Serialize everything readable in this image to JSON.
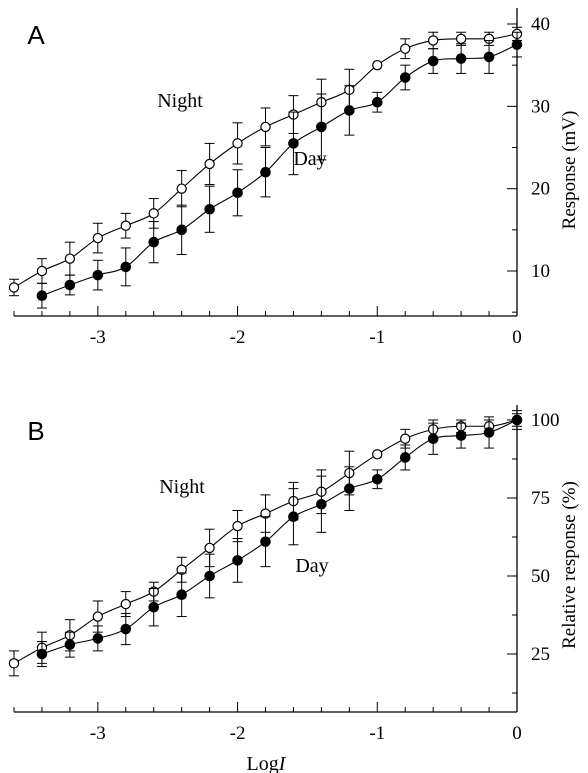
{
  "chart_data": [
    {
      "panel_label": "A",
      "type": "scatter",
      "ylabel": "Response (mV)",
      "yticks": [
        10,
        20,
        30,
        40
      ],
      "xticks": [
        -3,
        -2,
        -1,
        0
      ],
      "xlim": [
        -3.6,
        0
      ],
      "ylim": [
        3,
        43
      ],
      "annotations": [
        "Night",
        "Day"
      ],
      "series": [
        {
          "marker": "open",
          "x": [
            -3.6,
            -3.4,
            -3.2,
            -3.0,
            -2.8,
            -2.6,
            -2.4,
            -2.2,
            -2.0,
            -1.8,
            -1.6,
            -1.4,
            -1.2,
            -1.0,
            -0.8,
            -0.6,
            -0.4,
            -0.2,
            0.0
          ],
          "y": [
            8.0,
            10.0,
            11.5,
            14.0,
            15.5,
            17.0,
            20.0,
            23.0,
            25.5,
            27.5,
            29.0,
            30.5,
            32.0,
            35.0,
            37.0,
            38.0,
            38.2,
            38.2,
            38.8
          ],
          "err": [
            1.0,
            1.5,
            2.0,
            1.8,
            1.5,
            1.8,
            2.2,
            2.5,
            2.5,
            2.3,
            2.3,
            2.8,
            2.5,
            0,
            1.2,
            1.0,
            0.8,
            0.8,
            0.8
          ]
        },
        {
          "marker": "filled",
          "x": [
            -3.4,
            -3.2,
            -3.0,
            -2.8,
            -2.6,
            -2.4,
            -2.2,
            -2.0,
            -1.8,
            -1.6,
            -1.4,
            -1.2,
            -1.0,
            -0.8,
            -0.6,
            -0.4,
            -0.2,
            0.0
          ],
          "y": [
            7.0,
            8.3,
            9.5,
            10.5,
            13.5,
            15.0,
            17.5,
            19.5,
            22.0,
            25.5,
            27.5,
            29.5,
            30.5,
            33.5,
            35.5,
            35.8,
            36.0,
            37.5
          ],
          "err": [
            1.5,
            1.2,
            1.8,
            2.3,
            2.5,
            3.0,
            2.8,
            2.8,
            3.0,
            3.8,
            4.0,
            3.0,
            1.2,
            1.5,
            1.5,
            1.8,
            2.0,
            1.5
          ]
        }
      ]
    },
    {
      "panel_label": "B",
      "type": "scatter",
      "ylabel": "Relative response (%)",
      "xlabel": "LogI",
      "yticks": [
        25,
        50,
        75,
        100
      ],
      "xticks": [
        -3,
        -2,
        -1,
        0
      ],
      "xlim": [
        -3.6,
        0
      ],
      "ylim": [
        0,
        107
      ],
      "annotations": [
        "Night",
        "Day"
      ],
      "series": [
        {
          "marker": "open",
          "x": [
            -3.6,
            -3.4,
            -3.2,
            -3.0,
            -2.8,
            -2.6,
            -2.4,
            -2.2,
            -2.0,
            -1.8,
            -1.6,
            -1.4,
            -1.2,
            -1.0,
            -0.8,
            -0.6,
            -0.4,
            -0.2,
            0.0
          ],
          "y": [
            22,
            27,
            31,
            37,
            41,
            45,
            52,
            59,
            66,
            70,
            74,
            77,
            83,
            89,
            94,
            97,
            98,
            98,
            100
          ],
          "err": [
            4,
            5,
            5,
            5,
            4,
            3,
            4,
            6,
            5,
            6,
            6,
            7,
            7,
            0,
            3,
            3,
            2,
            2,
            2
          ]
        },
        {
          "marker": "filled",
          "x": [
            -3.4,
            -3.2,
            -3.0,
            -2.8,
            -2.6,
            -2.4,
            -2.2,
            -2.0,
            -1.8,
            -1.6,
            -1.4,
            -1.2,
            -1.0,
            -0.8,
            -0.6,
            -0.4,
            -0.2,
            0.0
          ],
          "y": [
            25,
            28,
            30,
            33,
            40,
            44,
            50,
            55,
            61,
            69,
            73,
            78,
            81,
            88,
            94,
            95,
            96,
            100
          ],
          "err": [
            4,
            4,
            4,
            5,
            6,
            7,
            7,
            7,
            8,
            9,
            9,
            7,
            3,
            4,
            5,
            4,
            5,
            3
          ]
        }
      ]
    }
  ]
}
